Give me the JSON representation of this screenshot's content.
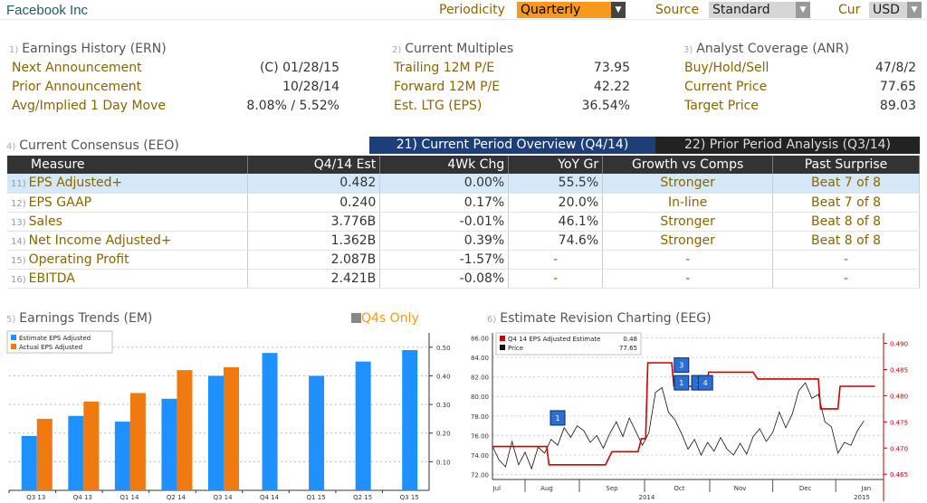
{
  "app": {
    "title": "Facebook Inc",
    "periodicity_label": "Periodicity",
    "periodicity_value": "Quarterly",
    "source_label": "Source",
    "source_value": "Standard",
    "cur_label": "Cur",
    "cur_value": "USD"
  },
  "sections": {
    "ern": {
      "num": "1)",
      "title": "Earnings History (ERN)",
      "rows": [
        {
          "label": "Next Announcement",
          "value": "(C)  01/28/15"
        },
        {
          "label": "Prior Announcement",
          "value": "10/28/14"
        },
        {
          "label": "Avg/Implied 1 Day Move",
          "value": "8.08% / 5.52%"
        }
      ]
    },
    "multiples": {
      "num": "2)",
      "title": "Current Multiples",
      "rows": [
        {
          "label": "Trailing 12M P/E",
          "value": "73.95"
        },
        {
          "label": "Forward 12M P/E",
          "value": "42.22"
        },
        {
          "label": "Est. LTG (EPS)",
          "value": "36.54%"
        }
      ]
    },
    "anr": {
      "num": "3)",
      "title": "Analyst Coverage (ANR)",
      "rows": [
        {
          "label": "Buy/Hold/Sell",
          "value": "47/8/2"
        },
        {
          "label": "Current Price",
          "value": "77.65"
        },
        {
          "label": "Target Price",
          "value": "89.03"
        }
      ]
    }
  },
  "consensus": {
    "num": "4)",
    "title": "Current Consensus (EEO)",
    "tab_current": "21) Current Period Overview (Q4/14)",
    "tab_prior": "22) Prior Period Analysis (Q3/14)",
    "headers": [
      "Measure",
      "Q4/14 Est",
      "4Wk Chg",
      "YoY Gr",
      "Growth vs Comps",
      "Past Surprise"
    ],
    "rows": [
      {
        "num": "11)",
        "measure": "EPS Adjusted+",
        "est": "0.482",
        "chg": "0.00%",
        "yoy": "55.5%",
        "comps": "Stronger",
        "surprise": "Beat 7 of 8"
      },
      {
        "num": "12)",
        "measure": "EPS GAAP",
        "est": "0.240",
        "chg": "0.17%",
        "yoy": "20.0%",
        "comps": "In-line",
        "surprise": "Beat 7 of 8"
      },
      {
        "num": "13)",
        "measure": "Sales",
        "est": "3.776B",
        "chg": "-0.01%",
        "yoy": "46.1%",
        "comps": "Stronger",
        "surprise": "Beat 8 of 8"
      },
      {
        "num": "14)",
        "measure": "Net Income Adjusted+",
        "est": "1.362B",
        "chg": "0.39%",
        "yoy": "74.6%",
        "comps": "Stronger",
        "surprise": "Beat 8 of 8"
      },
      {
        "num": "15)",
        "measure": "Operating Profit",
        "est": "2.087B",
        "chg": "-1.57%",
        "yoy": "-",
        "comps": "-",
        "surprise": "-"
      },
      {
        "num": "16)",
        "measure": "EBITDA",
        "est": "2.421B",
        "chg": "-0.08%",
        "yoy": "-",
        "comps": "-",
        "surprise": "-"
      }
    ]
  },
  "trends": {
    "num": "5)",
    "title": "Earnings Trends (EM)",
    "q4s_label": "Q4s Only"
  },
  "revision": {
    "num": "6)",
    "title": "Estimate Revision Charting (EEG)"
  },
  "colors": {
    "estimate": "#1e90ff",
    "actual": "#f07a10",
    "price": "#111111",
    "revision": "#cc0000"
  },
  "chart_data": [
    {
      "type": "bar",
      "categories": [
        "Q3 13",
        "Q4 13",
        "Q1 14",
        "Q2 14",
        "Q3 14",
        "Q4 14",
        "Q1 15",
        "Q2 15",
        "Q3 15"
      ],
      "series": [
        {
          "name": "Estimate EPS Adjusted",
          "values": [
            0.19,
            0.26,
            0.24,
            0.32,
            0.4,
            0.48,
            0.4,
            0.45,
            0.49
          ]
        },
        {
          "name": "Actual EPS Adjusted",
          "values": [
            0.25,
            0.31,
            0.34,
            0.42,
            0.43,
            null,
            null,
            null,
            null
          ]
        }
      ],
      "yticks": [
        "0.10",
        "0.20",
        "0.30",
        "0.40",
        "0.50"
      ],
      "ylim": [
        0,
        0.55
      ]
    },
    {
      "type": "line",
      "legend": [
        {
          "name": "Q4 14 EPS Adjusted Estimate",
          "value": "0.48"
        },
        {
          "name": "Price",
          "value": "77.65"
        }
      ],
      "xlabels": [
        "Jul",
        "Aug",
        "Sep",
        "Oct",
        "Nov",
        "Dec",
        "Jan"
      ],
      "year_labels": [
        "2014",
        "2015"
      ],
      "left_ticks": [
        "72.00",
        "74.00",
        "76.00",
        "78.00",
        "80.00",
        "82.00",
        "84.00",
        "86.00"
      ],
      "right_ticks": [
        "0.465",
        "0.470",
        "0.475",
        "0.480",
        "0.485",
        "0.490"
      ],
      "price_ylim": [
        71.5,
        86.5
      ],
      "estimate_ylim": [
        0.464,
        0.492
      ],
      "estimate_steps": [
        {
          "t": 0,
          "v": 0.4703
        },
        {
          "t": 0.25,
          "v": 0.4703
        },
        {
          "t": 0.26,
          "v": 0.4668
        },
        {
          "t": 0.52,
          "v": 0.4668
        },
        {
          "t": 0.55,
          "v": 0.4693
        },
        {
          "t": 0.67,
          "v": 0.4693
        },
        {
          "t": 0.685,
          "v": 0.4718
        },
        {
          "t": 0.705,
          "v": 0.4718
        },
        {
          "t": 0.715,
          "v": 0.4863
        },
        {
          "t": 0.825,
          "v": 0.4863
        },
        {
          "t": 0.835,
          "v": 0.4818
        },
        {
          "t": 0.985,
          "v": 0.4818
        },
        {
          "t": 0.995,
          "v": 0.4845
        },
        {
          "t": 1.2,
          "v": 0.4845
        },
        {
          "t": 1.22,
          "v": 0.4832
        },
        {
          "t": 1.5,
          "v": 0.4832
        },
        {
          "t": 1.51,
          "v": 0.4775
        },
        {
          "t": 1.59,
          "v": 0.4775
        },
        {
          "t": 1.6,
          "v": 0.4818
        },
        {
          "t": 1.76,
          "v": 0.4818
        }
      ],
      "price_points": [
        {
          "t": 0.0,
          "v": 74.9
        },
        {
          "t": 0.03,
          "v": 73.5
        },
        {
          "t": 0.06,
          "v": 72.8
        },
        {
          "t": 0.09,
          "v": 75.4
        },
        {
          "t": 0.12,
          "v": 73.0
        },
        {
          "t": 0.15,
          "v": 74.3
        },
        {
          "t": 0.18,
          "v": 72.6
        },
        {
          "t": 0.21,
          "v": 74.8
        },
        {
          "t": 0.24,
          "v": 74.2
        },
        {
          "t": 0.27,
          "v": 75.6
        },
        {
          "t": 0.3,
          "v": 75.0
        },
        {
          "t": 0.33,
          "v": 76.8
        },
        {
          "t": 0.36,
          "v": 75.8
        },
        {
          "t": 0.39,
          "v": 77.0
        },
        {
          "t": 0.42,
          "v": 76.5
        },
        {
          "t": 0.45,
          "v": 75.3
        },
        {
          "t": 0.48,
          "v": 76.0
        },
        {
          "t": 0.51,
          "v": 74.7
        },
        {
          "t": 0.54,
          "v": 76.2
        },
        {
          "t": 0.57,
          "v": 77.4
        },
        {
          "t": 0.6,
          "v": 75.9
        },
        {
          "t": 0.63,
          "v": 77.8
        },
        {
          "t": 0.66,
          "v": 76.4
        },
        {
          "t": 0.69,
          "v": 75.0
        },
        {
          "t": 0.72,
          "v": 76.3
        },
        {
          "t": 0.75,
          "v": 80.4
        },
        {
          "t": 0.78,
          "v": 80.9
        },
        {
          "t": 0.81,
          "v": 78.4
        },
        {
          "t": 0.84,
          "v": 77.6
        },
        {
          "t": 0.87,
          "v": 76.2
        },
        {
          "t": 0.9,
          "v": 74.6
        },
        {
          "t": 0.93,
          "v": 75.6
        },
        {
          "t": 0.96,
          "v": 74.0
        },
        {
          "t": 0.99,
          "v": 75.3
        },
        {
          "t": 1.02,
          "v": 74.4
        },
        {
          "t": 1.05,
          "v": 75.8
        },
        {
          "t": 1.08,
          "v": 74.6
        },
        {
          "t": 1.11,
          "v": 74.0
        },
        {
          "t": 1.14,
          "v": 75.2
        },
        {
          "t": 1.17,
          "v": 74.1
        },
        {
          "t": 1.2,
          "v": 75.9
        },
        {
          "t": 1.23,
          "v": 76.7
        },
        {
          "t": 1.26,
          "v": 75.4
        },
        {
          "t": 1.29,
          "v": 76.3
        },
        {
          "t": 1.32,
          "v": 78.4
        },
        {
          "t": 1.35,
          "v": 76.8
        },
        {
          "t": 1.38,
          "v": 78.2
        },
        {
          "t": 1.41,
          "v": 80.6
        },
        {
          "t": 1.44,
          "v": 81.4
        },
        {
          "t": 1.47,
          "v": 79.8
        },
        {
          "t": 1.5,
          "v": 80.2
        },
        {
          "t": 1.53,
          "v": 77.4
        },
        {
          "t": 1.56,
          "v": 76.9
        },
        {
          "t": 1.59,
          "v": 74.2
        },
        {
          "t": 1.62,
          "v": 75.3
        },
        {
          "t": 1.65,
          "v": 75.0
        },
        {
          "t": 1.68,
          "v": 76.5
        },
        {
          "t": 1.71,
          "v": 77.5
        }
      ],
      "markers": [
        {
          "t": 0.3,
          "v": 77.8,
          "label": "1"
        },
        {
          "t": 0.87,
          "v": 83.2,
          "label": "3"
        },
        {
          "t": 0.87,
          "v": 81.4,
          "label": "1"
        },
        {
          "t": 0.95,
          "v": 81.4,
          "label": "2"
        },
        {
          "t": 0.98,
          "v": 81.4,
          "label": "4"
        }
      ]
    }
  ]
}
